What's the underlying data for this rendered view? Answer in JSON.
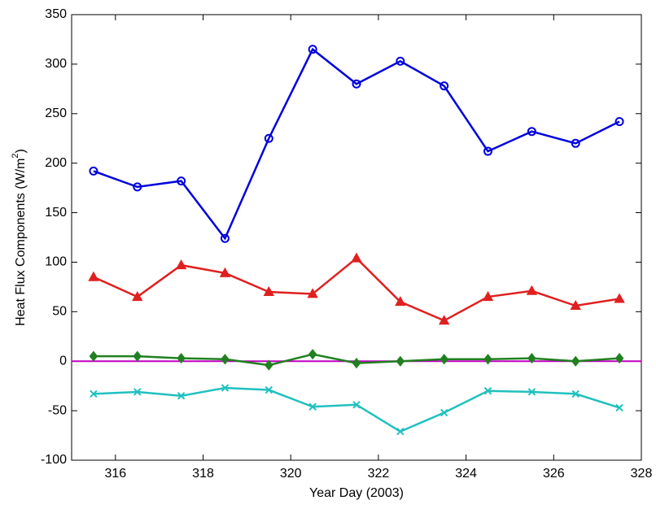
{
  "chart_data": {
    "type": "line",
    "xlabel": "Year Day (2003)",
    "ylabel_parts": [
      "Heat Flux Components (W/m",
      "2",
      ")"
    ],
    "x": [
      315.5,
      316.5,
      317.5,
      318.5,
      319.5,
      320.5,
      321.5,
      322.5,
      323.5,
      324.5,
      325.5,
      326.5,
      327.5
    ],
    "series": [
      {
        "color": "#0000dd",
        "marker": "circle",
        "values": [
          192,
          176,
          182,
          124,
          225,
          315,
          280,
          303,
          278,
          212,
          232,
          220,
          242
        ]
      },
      {
        "color": "#e02020",
        "marker": "triangle",
        "values": [
          85,
          65,
          97,
          89,
          70,
          68,
          104,
          60,
          41,
          65,
          71,
          56,
          63
        ]
      },
      {
        "color": "#208020",
        "marker": "diamond",
        "values": [
          5,
          5,
          3,
          2,
          -4,
          7,
          -2,
          0,
          2,
          2,
          3,
          0,
          3
        ]
      },
      {
        "color": "#20c0c0",
        "marker": "x",
        "values": [
          -33,
          -31,
          -35,
          -27,
          -29,
          -46,
          -44,
          -71,
          -52,
          -30,
          -31,
          -33,
          -47
        ]
      }
    ],
    "hlines": [
      {
        "y": 0,
        "color": "#c000c0"
      }
    ],
    "xlim": [
      315,
      328
    ],
    "xticks": [
      316,
      318,
      320,
      322,
      324,
      326,
      328
    ],
    "ylim": [
      -100,
      350
    ],
    "yticks": [
      -100,
      -50,
      0,
      50,
      100,
      150,
      200,
      250,
      300,
      350
    ],
    "grid": false
  }
}
